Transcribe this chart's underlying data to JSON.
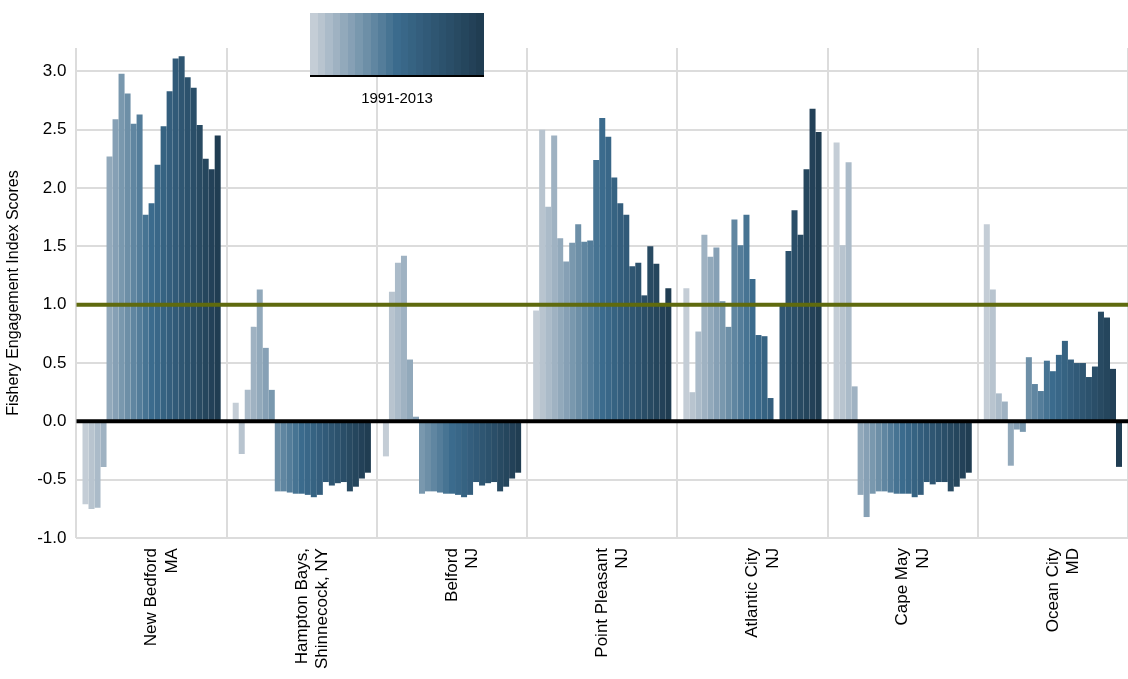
{
  "chart_data": {
    "type": "bar",
    "ylabel": "Fishery Engagement Index Scores",
    "legend_title": "1991-2013",
    "grid": true,
    "categories": [
      "New Bedford\nMA",
      "Hampton Bays,\nShinnecock, NY",
      "Belford\nNJ",
      "Point Pleasant\nNJ",
      "Atlantic City\nNJ",
      "Cape May\nNJ",
      "Ocean City\nMD"
    ],
    "ylim": [
      -1.0,
      3.2
    ],
    "yticks": [
      {
        "value": -1,
        "label": "-1.0"
      },
      {
        "value": -0.5,
        "label": "-0.5"
      },
      {
        "value": 0,
        "label": "0.0"
      },
      {
        "value": 0.5,
        "label": "0.5"
      },
      {
        "value": 1,
        "label": "1.0"
      },
      {
        "value": 1.5,
        "label": "1.5"
      },
      {
        "value": 2,
        "label": "2.0"
      },
      {
        "value": 2.5,
        "label": "2.5"
      },
      {
        "value": 3,
        "label": "3.0"
      }
    ],
    "ref_lines": [
      {
        "axis": "y",
        "value": 1,
        "color": "#5f6a0e"
      },
      {
        "axis": "y",
        "value": 0,
        "color": "#000000"
      }
    ],
    "series": [
      {
        "color": "#c4cdd6",
        "values": [
          -0.71,
          0.16,
          -0.3,
          0.95,
          1.14,
          2.39,
          1.69
        ]
      },
      {
        "color": "#b8c4cf",
        "values": [
          -0.75,
          -0.28,
          1.11,
          2.5,
          0.25,
          1.51,
          1.13
        ]
      },
      {
        "color": "#abbbc9",
        "values": [
          -0.74,
          0.27,
          1.36,
          1.84,
          0.77,
          2.22,
          0.24
        ]
      },
      {
        "color": "#9fb2c2",
        "values": [
          -0.39,
          0.81,
          1.42,
          2.45,
          1.6,
          0.3,
          0.17
        ]
      },
      {
        "color": "#92a9bb",
        "values": [
          2.27,
          1.13,
          0.53,
          1.57,
          1.41,
          -0.63,
          -0.38
        ]
      },
      {
        "color": "#86a0b5",
        "values": [
          2.59,
          0.63,
          0.04,
          1.37,
          1.49,
          -0.82,
          -0.07
        ]
      },
      {
        "color": "#7998ae",
        "values": [
          2.98,
          0.27,
          -0.62,
          1.53,
          1.03,
          -0.62,
          -0.09
        ]
      },
      {
        "color": "#6d8fa7",
        "values": [
          2.81,
          -0.6,
          -0.6,
          1.69,
          0.81,
          -0.6,
          0.55
        ]
      },
      {
        "color": "#6086a1",
        "values": [
          2.55,
          -0.6,
          -0.6,
          1.54,
          1.73,
          -0.6,
          0.32
        ]
      },
      {
        "color": "#547d9a",
        "values": [
          2.63,
          -0.61,
          -0.61,
          1.55,
          1.51,
          -0.61,
          0.26
        ]
      },
      {
        "color": "#477493",
        "values": [
          1.77,
          -0.62,
          -0.62,
          2.24,
          1.77,
          -0.62,
          0.52
        ]
      },
      {
        "color": "#3b6b8d",
        "values": [
          1.87,
          -0.62,
          -0.62,
          2.6,
          1.22,
          -0.62,
          0.43
        ]
      },
      {
        "color": "#396788",
        "values": [
          2.2,
          -0.63,
          -0.63,
          2.44,
          0.74,
          -0.62,
          0.57
        ]
      },
      {
        "color": "#366382",
        "values": [
          2.53,
          -0.65,
          -0.65,
          2.09,
          0.73,
          -0.65,
          0.69
        ]
      },
      {
        "color": "#345e7d",
        "values": [
          2.83,
          -0.63,
          -0.63,
          1.87,
          0.2,
          -0.63,
          0.53
        ]
      },
      {
        "color": "#315a78",
        "values": [
          3.11,
          -0.52,
          -0.52,
          1.77,
          0,
          -0.52,
          0.5
        ]
      },
      {
        "color": "#2f5672",
        "values": [
          3.13,
          -0.55,
          -0.55,
          1.33,
          1.0,
          -0.54,
          0.5
        ]
      },
      {
        "color": "#2c526d",
        "values": [
          2.95,
          -0.53,
          -0.53,
          1.36,
          1.46,
          -0.52,
          0.38
        ]
      },
      {
        "color": "#2a4e68",
        "values": [
          2.86,
          -0.52,
          -0.52,
          1.08,
          1.81,
          -0.52,
          0.47
        ]
      },
      {
        "color": "#284a62",
        "values": [
          2.54,
          -0.6,
          -0.6,
          1.5,
          1.6,
          -0.6,
          0.94
        ]
      },
      {
        "color": "#25465d",
        "values": [
          2.25,
          -0.56,
          -0.56,
          1.35,
          2.16,
          -0.56,
          0.89
        ]
      },
      {
        "color": "#234158",
        "values": [
          2.16,
          -0.49,
          -0.49,
          1.0,
          2.68,
          -0.49,
          0.45
        ]
      },
      {
        "color": "#203d52",
        "values": [
          2.45,
          -0.44,
          -0.44,
          1.14,
          2.48,
          -0.44,
          -0.39
        ]
      }
    ]
  }
}
